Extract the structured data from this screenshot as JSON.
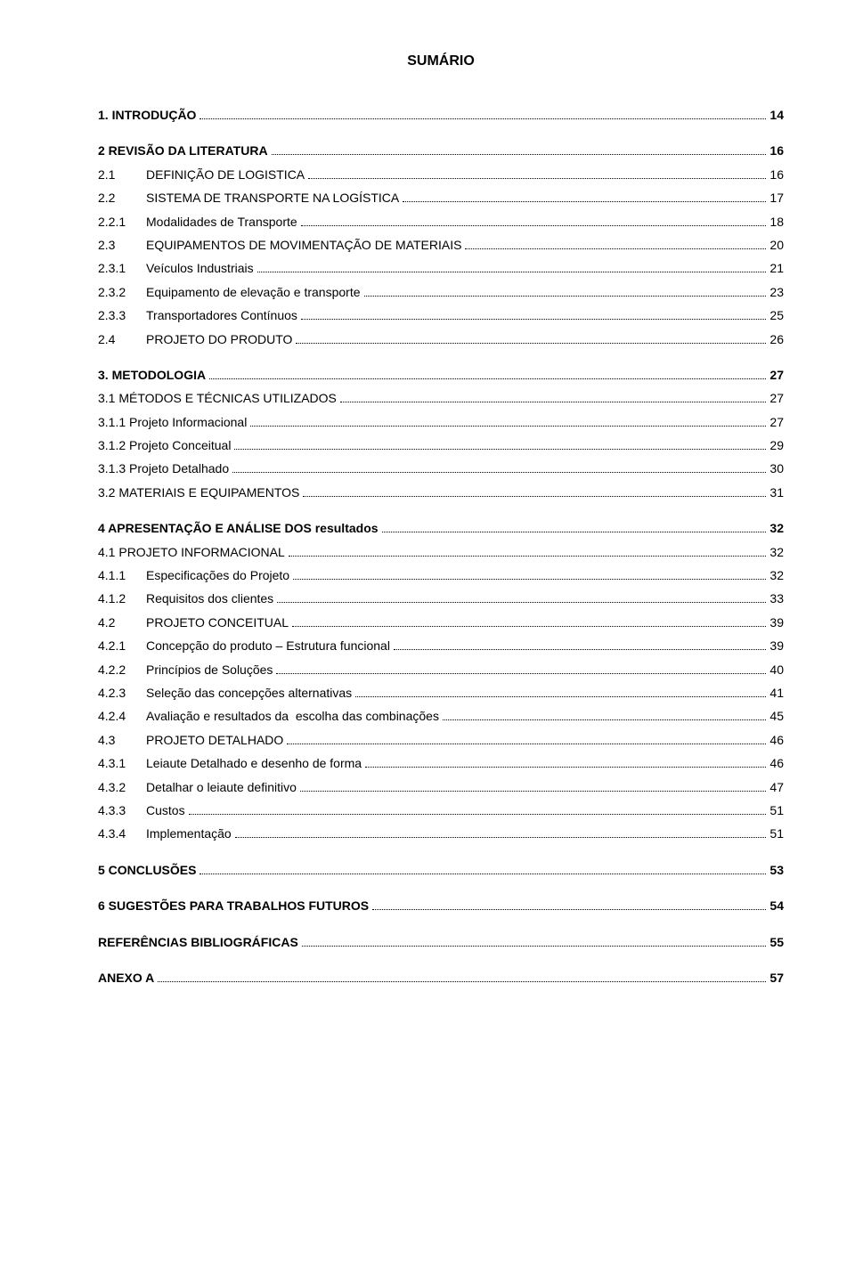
{
  "title": "SUMÁRIO",
  "entries": [
    {
      "num": "",
      "label": "1. INTRODUÇÃO",
      "page": "14",
      "bold": true,
      "gap": "lg"
    },
    {
      "num": "",
      "label": "2 REVISÃO DA LITERATURA",
      "page": "16",
      "bold": true,
      "gap": "lg"
    },
    {
      "num": "2.1",
      "label": "DEFINIÇÃO DE LOGISTICA",
      "page": "16",
      "bold": false,
      "gap": "sm",
      "indent": 1
    },
    {
      "num": "2.2",
      "label": "SISTEMA DE TRANSPORTE NA LOGÍSTICA",
      "page": "17",
      "bold": false,
      "gap": "sm",
      "indent": 1
    },
    {
      "num": "2.2.1",
      "label": "Modalidades de Transporte",
      "page": "18",
      "bold": false,
      "gap": "sm",
      "indent": 1
    },
    {
      "num": "2.3",
      "label": "EQUIPAMENTOS DE MOVIMENTAÇÃO DE MATERIAIS",
      "page": "20",
      "bold": false,
      "gap": "sm",
      "indent": 1
    },
    {
      "num": "2.3.1",
      "label": "Veículos Industriais",
      "page": "21",
      "bold": false,
      "gap": "sm",
      "indent": 1
    },
    {
      "num": "2.3.2",
      "label": "Equipamento de elevação e transporte",
      "page": "23",
      "bold": false,
      "gap": "sm",
      "indent": 1
    },
    {
      "num": "2.3.3",
      "label": "Transportadores Contínuos",
      "page": "25",
      "bold": false,
      "gap": "sm",
      "indent": 1
    },
    {
      "num": "2.4",
      "label": "PROJETO DO PRODUTO",
      "page": "26",
      "bold": false,
      "gap": "sm",
      "indent": 1
    },
    {
      "num": "",
      "label": "3. METODOLOGIA",
      "page": "27",
      "bold": true,
      "gap": "lg"
    },
    {
      "num": "",
      "label": "3.1 MÉTODOS E TÉCNICAS UTILIZADOS",
      "page": "27",
      "bold": false,
      "gap": "sm"
    },
    {
      "num": "",
      "label": "3.1.1 Projeto Informacional",
      "page": "27",
      "bold": false,
      "gap": "sm"
    },
    {
      "num": "",
      "label": "3.1.2 Projeto Conceitual",
      "page": "29",
      "bold": false,
      "gap": "sm"
    },
    {
      "num": "",
      "label": "3.1.3 Projeto Detalhado",
      "page": "30",
      "bold": false,
      "gap": "sm"
    },
    {
      "num": "",
      "label": "3.2 MATERIAIS E EQUIPAMENTOS",
      "page": "31",
      "bold": false,
      "gap": "sm"
    },
    {
      "num": "",
      "label": "4 APRESENTAÇÃO E ANÁLISE DOS resultados",
      "page": "32",
      "bold": true,
      "gap": "lg"
    },
    {
      "num": "",
      "label": "4.1 PROJETO INFORMACIONAL",
      "page": "32",
      "bold": false,
      "gap": "sm"
    },
    {
      "num": "4.1.1",
      "label": "Especificações do Projeto",
      "page": "32",
      "bold": false,
      "gap": "sm",
      "indent": 1
    },
    {
      "num": "4.1.2",
      "label": "Requisitos dos clientes",
      "page": "33",
      "bold": false,
      "gap": "sm",
      "indent": 1
    },
    {
      "num": "4.2",
      "label": "PROJETO CONCEITUAL",
      "page": "39",
      "bold": false,
      "gap": "sm",
      "indent": 1
    },
    {
      "num": "4.2.1",
      "label": "Concepção do produto – Estrutura funcional",
      "page": "39",
      "bold": false,
      "gap": "sm",
      "indent": 1
    },
    {
      "num": "4.2.2",
      "label": "Princípios de Soluções",
      "page": "40",
      "bold": false,
      "gap": "sm",
      "indent": 1
    },
    {
      "num": "4.2.3",
      "label": "Seleção das concepções alternativas",
      "page": "41",
      "bold": false,
      "gap": "sm",
      "indent": 1
    },
    {
      "num": "4.2.4",
      "label": "Avaliação e resultados da  escolha das combinações",
      "page": "45",
      "bold": false,
      "gap": "sm",
      "indent": 1
    },
    {
      "num": "4.3",
      "label": "PROJETO DETALHADO",
      "page": "46",
      "bold": false,
      "gap": "sm",
      "indent": 1
    },
    {
      "num": "4.3.1",
      "label": "Leiaute Detalhado e desenho de forma",
      "page": "46",
      "bold": false,
      "gap": "sm",
      "indent": 1
    },
    {
      "num": "4.3.2",
      "label": "Detalhar o leiaute definitivo",
      "page": "47",
      "bold": false,
      "gap": "sm",
      "indent": 1
    },
    {
      "num": "4.3.3",
      "label": "Custos",
      "page": "51",
      "bold": false,
      "gap": "sm",
      "indent": 1
    },
    {
      "num": "4.3.4",
      "label": "Implementação",
      "page": "51",
      "bold": false,
      "gap": "sm",
      "indent": 1
    },
    {
      "num": "",
      "label": "5 CONCLUSÕES",
      "page": "53",
      "bold": true,
      "gap": "lg"
    },
    {
      "num": "",
      "label": "6 SUGESTÕES PARA TRABALHOS FUTUROS",
      "page": "54",
      "bold": true,
      "gap": "lg"
    },
    {
      "num": "",
      "label": "REFERÊNCIAS BIBLIOGRÁFICAS",
      "page": "55",
      "bold": true,
      "gap": "lg"
    },
    {
      "num": "",
      "label": "ANEXO A",
      "page": "57",
      "bold": true,
      "gap": "lg"
    }
  ]
}
